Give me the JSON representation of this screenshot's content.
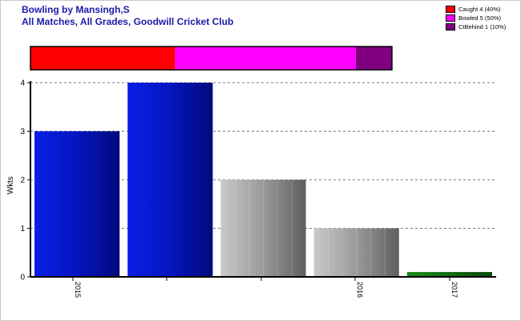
{
  "title_line1": "Bowling by Mansingh,S",
  "title_line2": "All Matches, All Grades, Goodwill Cricket Club",
  "legend": [
    {
      "label": "Caught 4 (40%)",
      "color": "#ff0000"
    },
    {
      "label": "Bowled 5 (50%)",
      "color": "#ff00ff"
    },
    {
      "label": "CtBehind 1 (10%)",
      "color": "#800080"
    }
  ],
  "chart_data": [
    {
      "type": "bar",
      "orientation": "horizontal-stacked",
      "segments": [
        {
          "name": "Caught",
          "value": 4,
          "percent": 40,
          "color": "#ff0000"
        },
        {
          "name": "Bowled",
          "value": 5,
          "percent": 50,
          "color": "#ff00ff"
        },
        {
          "name": "CtBehind",
          "value": 1,
          "percent": 10,
          "color": "#800080"
        }
      ]
    },
    {
      "type": "bar",
      "ylabel": "Wkts",
      "ylim": [
        0,
        4
      ],
      "yticks": [
        0,
        1,
        2,
        3,
        4
      ],
      "grid": true,
      "x_tick_labels": [
        "2015",
        "",
        "",
        "2016",
        "2017"
      ],
      "bars": [
        {
          "value": 3,
          "style": "blue"
        },
        {
          "value": 4,
          "style": "blue"
        },
        {
          "value": 2,
          "style": "gray"
        },
        {
          "value": 1,
          "style": "gray"
        },
        {
          "value": 0.1,
          "style": "green"
        }
      ]
    }
  ]
}
